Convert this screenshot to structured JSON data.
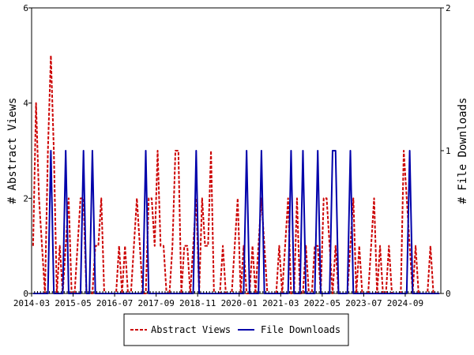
{
  "chart_data": {
    "type": "line",
    "x_labels": [
      "2014-03",
      "2015-05",
      "2016-07",
      "2017-09",
      "2018-11",
      "2020-01",
      "2021-03",
      "2022-05",
      "2023-07",
      "2024-09"
    ],
    "y_left": {
      "label": "# Abstract Views",
      "min": 0,
      "max": 6,
      "ticks": [
        "0",
        "2",
        "4",
        "6"
      ]
    },
    "y_right": {
      "label": "# File Downloads",
      "min": 0,
      "max": 2,
      "ticks": [
        "0",
        "1",
        "2"
      ]
    },
    "n_months": 138,
    "series": [
      {
        "name": "Abstract Views",
        "axis": "left",
        "color": "#cc0000",
        "style": "dashed",
        "points": [
          [
            0,
            1
          ],
          [
            1,
            4
          ],
          [
            2,
            2
          ],
          [
            3,
            1
          ],
          [
            4,
            0
          ],
          [
            5,
            3
          ],
          [
            6,
            5
          ],
          [
            7,
            3
          ],
          [
            8,
            0
          ],
          [
            9,
            1
          ],
          [
            10,
            0
          ],
          [
            11,
            1
          ],
          [
            12,
            2
          ],
          [
            13,
            0
          ],
          [
            14,
            0
          ],
          [
            15,
            1
          ],
          [
            16,
            2
          ],
          [
            17,
            2
          ],
          [
            18,
            0
          ],
          [
            19,
            0
          ],
          [
            20,
            0
          ],
          [
            21,
            1
          ],
          [
            22,
            1
          ],
          [
            23,
            2
          ],
          [
            24,
            0
          ],
          [
            25,
            0
          ],
          [
            26,
            0
          ],
          [
            27,
            0
          ],
          [
            28,
            0
          ],
          [
            29,
            1
          ],
          [
            30,
            0
          ],
          [
            31,
            1
          ],
          [
            32,
            0
          ],
          [
            33,
            0
          ],
          [
            34,
            1
          ],
          [
            35,
            2
          ],
          [
            36,
            1
          ],
          [
            37,
            0
          ],
          [
            38,
            0
          ],
          [
            39,
            2
          ],
          [
            40,
            2
          ],
          [
            41,
            1
          ],
          [
            42,
            3
          ],
          [
            43,
            1
          ],
          [
            44,
            1
          ],
          [
            45,
            0
          ],
          [
            46,
            0
          ],
          [
            47,
            1
          ],
          [
            48,
            3
          ],
          [
            49,
            3
          ],
          [
            50,
            0
          ],
          [
            51,
            1
          ],
          [
            52,
            1
          ],
          [
            53,
            0
          ],
          [
            54,
            1
          ],
          [
            55,
            2
          ],
          [
            56,
            0
          ],
          [
            57,
            2
          ],
          [
            58,
            1
          ],
          [
            59,
            1
          ],
          [
            60,
            3
          ],
          [
            61,
            0
          ],
          [
            62,
            0
          ],
          [
            63,
            0
          ],
          [
            64,
            1
          ],
          [
            65,
            0
          ],
          [
            66,
            0
          ],
          [
            67,
            0
          ],
          [
            68,
            1
          ],
          [
            69,
            2
          ],
          [
            70,
            0
          ],
          [
            71,
            1
          ],
          [
            72,
            0
          ],
          [
            73,
            0
          ],
          [
            74,
            1
          ],
          [
            75,
            0
          ],
          [
            76,
            1
          ],
          [
            77,
            2
          ],
          [
            78,
            1
          ],
          [
            79,
            0
          ],
          [
            80,
            0
          ],
          [
            81,
            0
          ],
          [
            82,
            0
          ],
          [
            83,
            1
          ],
          [
            84,
            0
          ],
          [
            85,
            1
          ],
          [
            86,
            2
          ],
          [
            87,
            0
          ],
          [
            88,
            0
          ],
          [
            89,
            2
          ],
          [
            90,
            0
          ],
          [
            91,
            0
          ],
          [
            92,
            1
          ],
          [
            93,
            0
          ],
          [
            94,
            0
          ],
          [
            95,
            1
          ],
          [
            96,
            1
          ],
          [
            97,
            0
          ],
          [
            98,
            2
          ],
          [
            99,
            2
          ],
          [
            100,
            1
          ],
          [
            101,
            0
          ],
          [
            102,
            1
          ],
          [
            103,
            0
          ],
          [
            104,
            0
          ],
          [
            105,
            0
          ],
          [
            106,
            0
          ],
          [
            107,
            1
          ],
          [
            108,
            2
          ],
          [
            109,
            0
          ],
          [
            110,
            1
          ],
          [
            111,
            0
          ],
          [
            112,
            0
          ],
          [
            113,
            0
          ],
          [
            114,
            1
          ],
          [
            115,
            2
          ],
          [
            116,
            0
          ],
          [
            117,
            1
          ],
          [
            118,
            0
          ],
          [
            119,
            0
          ],
          [
            120,
            1
          ],
          [
            121,
            0
          ],
          [
            122,
            0
          ],
          [
            123,
            0
          ],
          [
            124,
            0
          ],
          [
            125,
            3
          ],
          [
            126,
            2
          ],
          [
            127,
            1
          ],
          [
            128,
            0
          ],
          [
            129,
            1
          ],
          [
            130,
            0
          ],
          [
            131,
            0
          ],
          [
            132,
            0
          ],
          [
            133,
            0
          ],
          [
            134,
            1
          ],
          [
            135,
            0
          ],
          [
            136,
            0
          ],
          [
            137,
            0
          ]
        ]
      },
      {
        "name": "File Downloads",
        "axis": "right",
        "color": "#0000aa",
        "style": "solid",
        "points": [
          [
            6,
            1
          ],
          [
            11,
            1
          ],
          [
            17,
            1
          ],
          [
            20,
            1
          ],
          [
            38,
            1
          ],
          [
            55,
            1
          ],
          [
            72,
            1
          ],
          [
            77,
            1
          ],
          [
            87,
            1
          ],
          [
            91,
            1
          ],
          [
            96,
            1
          ],
          [
            101,
            1
          ],
          [
            102,
            1
          ],
          [
            107,
            1
          ],
          [
            127,
            1
          ]
        ]
      }
    ],
    "legend": {
      "placement": "bottom",
      "entries": [
        "Abstract Views",
        "File Downloads"
      ]
    }
  }
}
